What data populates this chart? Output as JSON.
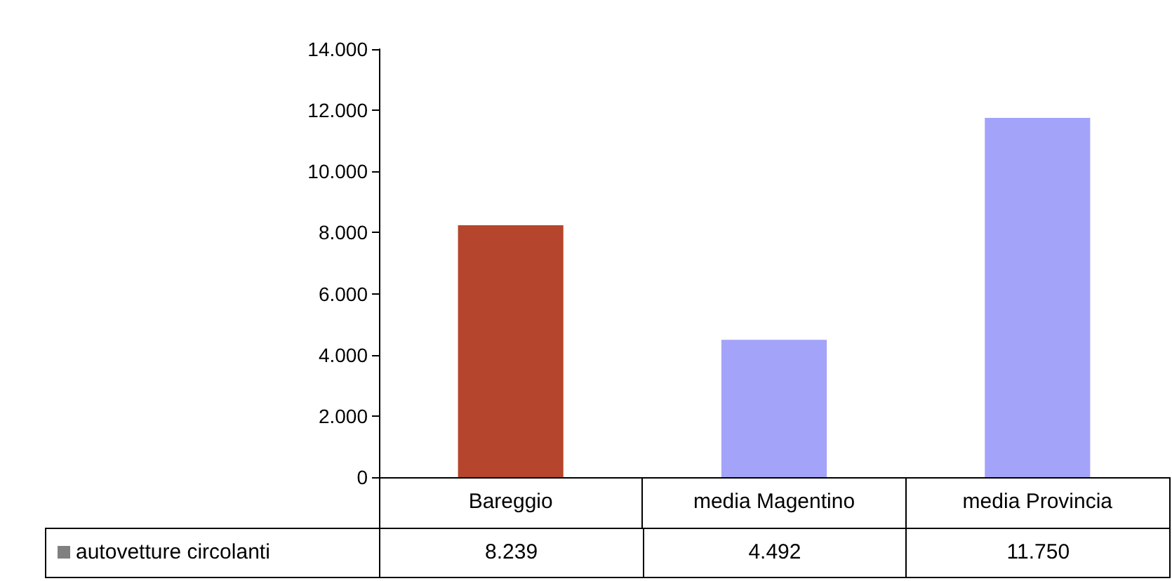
{
  "chart_data": {
    "type": "bar",
    "categories": [
      "Bareggio",
      "media Magentino",
      "media Provincia"
    ],
    "series": [
      {
        "name": "autovetture circolanti",
        "color": "#808080",
        "colors": [
          "#b5452c",
          "#a3a3fa",
          "#a3a3fa"
        ],
        "values": [
          8239,
          4492,
          11750
        ],
        "value_labels": [
          "8.239",
          "4.492",
          "11.750"
        ]
      }
    ],
    "ylim": [
      0,
      14000
    ],
    "yticks": [
      {
        "value": 0,
        "label": "0"
      },
      {
        "value": 2000,
        "label": "2.000"
      },
      {
        "value": 4000,
        "label": "4.000"
      },
      {
        "value": 6000,
        "label": "6.000"
      },
      {
        "value": 8000,
        "label": "8.000"
      },
      {
        "value": 10000,
        "label": "10.000"
      },
      {
        "value": 12000,
        "label": "12.000"
      },
      {
        "value": 14000,
        "label": "14.000"
      }
    ],
    "grid": false,
    "legend": "bottom left"
  }
}
